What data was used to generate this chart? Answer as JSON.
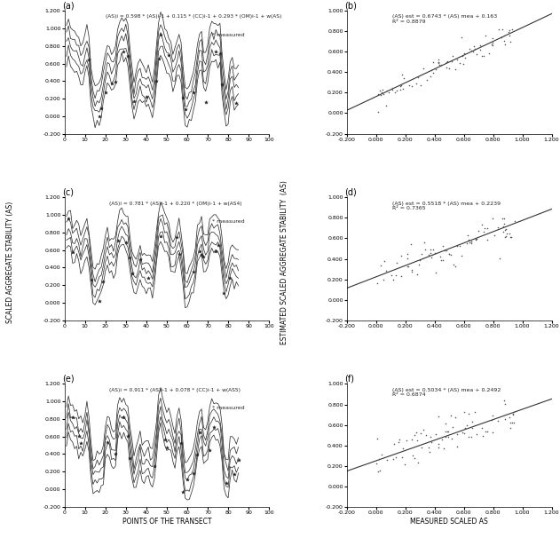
{
  "subplot_labels": [
    "(a)",
    "(b)",
    "(c)",
    "(d)",
    "(e)",
    "(f)"
  ],
  "equations_left": [
    "(AS)i = 0.598 * (AS)i-1 + 0.115 * (CC)i-1 + 0.293 * (OM)i-1 + w(AS)",
    "(AS)i = 0.781 * (AS)i-1 + 0.220 * (OM)i-1 + w(AS4)",
    "(AS)i = 0.911 * (AS)i-1 + 0.078 * (CC)i-1 + w(AS5)"
  ],
  "equations_right": [
    "(AS) est = 0.6743 * (AS) mea + 0.163\nR² = 0.8879",
    "(AS) est = 0.5518 * (AS) mea + 0.2239\nR² = 0.7365",
    "(AS) est = 0.5034 * (AS) mea + 0.2492\nR² = 0.6874"
  ],
  "xlabel_left": "POINTS OF THE TRANSECT",
  "xlabel_right": "MEASURED SCALED AS",
  "ylabel_left": "SCALED AGGREGATE STABILITY (AS)",
  "ylabel_right": "ESTIMATED SCALED AGGREGATE STABILITY  (AS)",
  "xlim_left": [
    0,
    100
  ],
  "ylim_left": [
    -0.2,
    1.2
  ],
  "xlim_right": [
    -0.2,
    1.2
  ],
  "ylim_right": [
    -0.2,
    1.0
  ],
  "xticks_left": [
    0,
    10,
    20,
    30,
    40,
    50,
    60,
    70,
    80,
    90,
    100
  ],
  "yticks_left": [
    -0.2,
    0.0,
    0.2,
    0.4,
    0.6,
    0.8,
    1.0,
    1.2
  ],
  "xticks_right": [
    -0.2,
    0.0,
    0.2,
    0.4,
    0.6,
    0.8,
    1.0,
    1.2
  ],
  "yticks_right": [
    -0.2,
    0.0,
    0.2,
    0.4,
    0.6,
    0.8,
    1.0
  ],
  "line_color": "#333333",
  "scatter_color": "#555555",
  "bg_color": "#ffffff",
  "reg_slopes": [
    0.6743,
    0.5518,
    0.5034
  ],
  "reg_intercepts": [
    0.163,
    0.2239,
    0.2492
  ]
}
